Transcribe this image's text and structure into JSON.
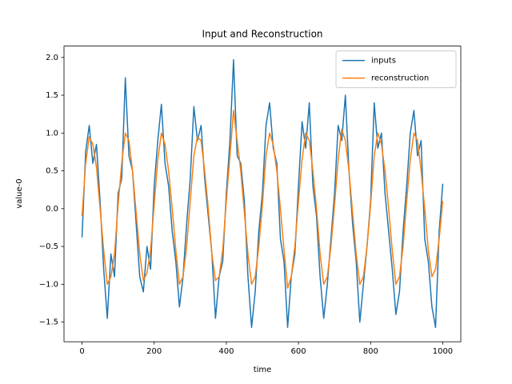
{
  "chart_data": {
    "type": "line",
    "title": "Input and Reconstruction",
    "xlabel": "time",
    "ylabel": "value-0",
    "x": [
      0,
      10,
      20,
      30,
      40,
      50,
      60,
      70,
      80,
      90,
      100,
      110,
      120,
      130,
      140,
      150,
      160,
      170,
      180,
      190,
      200,
      210,
      220,
      230,
      240,
      250,
      260,
      270,
      280,
      290,
      300,
      310,
      320,
      330,
      340,
      350,
      360,
      370,
      380,
      390,
      400,
      410,
      420,
      430,
      440,
      450,
      460,
      470,
      480,
      490,
      500,
      510,
      520,
      530,
      540,
      550,
      560,
      570,
      580,
      590,
      600,
      610,
      620,
      630,
      640,
      650,
      660,
      670,
      680,
      690,
      700,
      710,
      720,
      730,
      740,
      750,
      760,
      770,
      780,
      790,
      800,
      810,
      820,
      830,
      840,
      850,
      860,
      870,
      880,
      890,
      900,
      910,
      920,
      930,
      940,
      950,
      960,
      970,
      980,
      990,
      1000
    ],
    "series": [
      {
        "name": "inputs",
        "color": "#1f77b4",
        "values": [
          -0.38,
          0.75,
          1.1,
          0.6,
          0.85,
          0.1,
          -0.8,
          -1.45,
          -0.6,
          -0.9,
          0.2,
          0.4,
          1.73,
          0.7,
          0.5,
          -0.2,
          -0.9,
          -1.1,
          -0.5,
          -0.8,
          0.3,
          0.9,
          1.38,
          0.6,
          0.3,
          -0.3,
          -0.7,
          -1.3,
          -0.9,
          -0.2,
          0.4,
          1.35,
          0.9,
          1.1,
          0.4,
          -0.1,
          -0.6,
          -1.45,
          -0.9,
          -0.7,
          0.2,
          0.9,
          1.97,
          0.7,
          0.6,
          0.1,
          -0.9,
          -1.57,
          -1.1,
          -0.3,
          0.2,
          1.1,
          1.4,
          0.8,
          0.6,
          -0.4,
          -0.7,
          -1.57,
          -0.9,
          -0.6,
          0.3,
          1.15,
          0.8,
          1.4,
          0.3,
          -0.1,
          -0.9,
          -1.45,
          -1.0,
          -0.4,
          0.2,
          1.1,
          0.9,
          1.5,
          0.5,
          -0.2,
          -0.7,
          -1.5,
          -1.0,
          -0.5,
          0.1,
          1.4,
          0.8,
          1.0,
          0.2,
          -0.3,
          -0.8,
          -1.4,
          -1.1,
          -0.3,
          0.3,
          1.0,
          1.3,
          0.7,
          0.9,
          -0.4,
          -0.7,
          -1.3,
          -1.57,
          -0.3,
          0.33
        ]
      },
      {
        "name": "reconstruction",
        "color": "#ff7f0e",
        "values": [
          -0.1,
          0.6,
          0.95,
          0.85,
          0.55,
          0.0,
          -0.55,
          -1.0,
          -0.9,
          -0.6,
          0.05,
          0.6,
          1.0,
          0.9,
          0.5,
          -0.05,
          -0.6,
          -0.95,
          -0.85,
          -0.55,
          0.05,
          0.65,
          1.0,
          0.85,
          0.5,
          0.0,
          -0.55,
          -1.0,
          -0.9,
          -0.5,
          0.1,
          0.7,
          0.95,
          0.9,
          0.5,
          0.0,
          -0.6,
          -0.95,
          -0.9,
          -0.55,
          0.1,
          0.7,
          1.3,
          0.9,
          0.5,
          -0.05,
          -0.6,
          -1.0,
          -0.9,
          -0.5,
          0.05,
          0.7,
          1.0,
          0.85,
          0.5,
          0.0,
          -0.55,
          -1.05,
          -0.9,
          -0.5,
          0.1,
          0.65,
          1.0,
          0.9,
          0.5,
          0.0,
          -0.6,
          -1.0,
          -0.9,
          -0.5,
          0.05,
          0.65,
          1.05,
          0.9,
          0.5,
          -0.05,
          -0.6,
          -1.0,
          -0.9,
          -0.5,
          0.05,
          0.7,
          1.0,
          0.85,
          0.5,
          0.0,
          -0.55,
          -1.0,
          -0.9,
          -0.5,
          0.1,
          0.65,
          1.0,
          0.9,
          0.5,
          0.0,
          -0.55,
          -0.9,
          -0.8,
          -0.4,
          0.1
        ]
      }
    ],
    "xlim": [
      -50,
      1050
    ],
    "xticks": [
      0,
      200,
      400,
      600,
      800,
      1000
    ],
    "ylim": [
      -1.76,
      2.15
    ],
    "yticks": [
      {
        "value": -1.5,
        "label": "−1.5"
      },
      {
        "value": -1,
        "label": "−1.0"
      },
      {
        "value": -0.5,
        "label": "−0.5"
      },
      {
        "value": 0,
        "label": "0.0"
      },
      {
        "value": 0.5,
        "label": "0.5"
      },
      {
        "value": 1,
        "label": "1.0"
      },
      {
        "value": 1.5,
        "label": "1.5"
      },
      {
        "value": 2,
        "label": "2.0"
      }
    ],
    "legend": "upper right",
    "grid": false
  }
}
